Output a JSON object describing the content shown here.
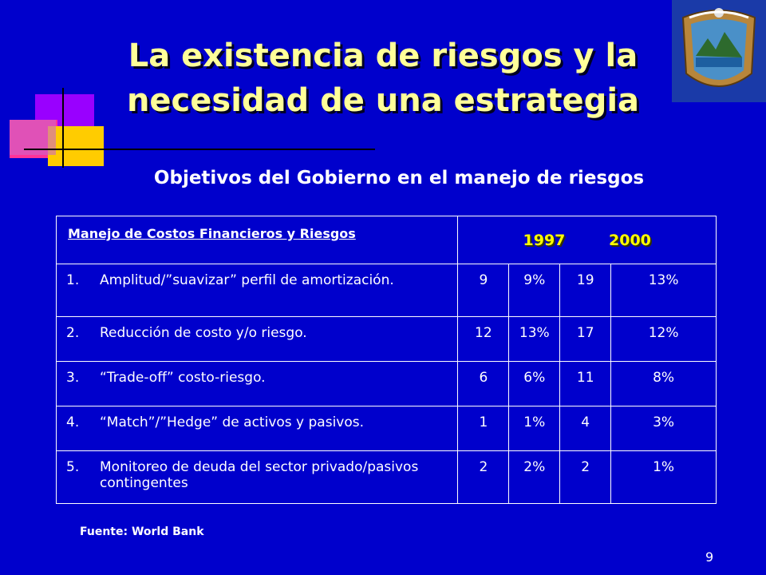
{
  "slide": {
    "title_line1": "La existencia de riesgos y la",
    "title_line2": "necesidad de una estrategia",
    "subtitle": "Objetivos del Gobierno en el manejo de riesgos",
    "source": "Fuente: World Bank",
    "page_number": "9"
  },
  "table": {
    "header": "Manejo de Costos Financieros y Riesgos",
    "year1": "1997",
    "year2": "2000",
    "rows": [
      {
        "num": "1.",
        "text": "Amplitud/”suavizar” perfil de amortización.",
        "c1": "9",
        "c2": "9%",
        "c3": "19",
        "c4": "13%"
      },
      {
        "num": "2.",
        "text": "Reducción de costo y/o riesgo.",
        "c1": "12",
        "c2": "13%",
        "c3": "17",
        "c4": "12%"
      },
      {
        "num": "3.",
        "text": "“Trade-off” costo-riesgo.",
        "c1": "6",
        "c2": "6%",
        "c3": "11",
        "c4": "8%"
      },
      {
        "num": "4.",
        "text": "“Match”/”Hedge” de activos y pasivos.",
        "c1": "1",
        "c2": "1%",
        "c3": "4",
        "c4": "3%"
      },
      {
        "num": "5.",
        "text": "Monitoreo de deuda del sector privado/pasivos contingentes",
        "c1": "2",
        "c2": "2%",
        "c3": "2",
        "c4": "1%"
      }
    ]
  },
  "colors": {
    "background": "#0000cc",
    "title": "#ffff99",
    "years": "#ffff00"
  },
  "icons": {
    "seal": "coat-of-arms-icon"
  }
}
